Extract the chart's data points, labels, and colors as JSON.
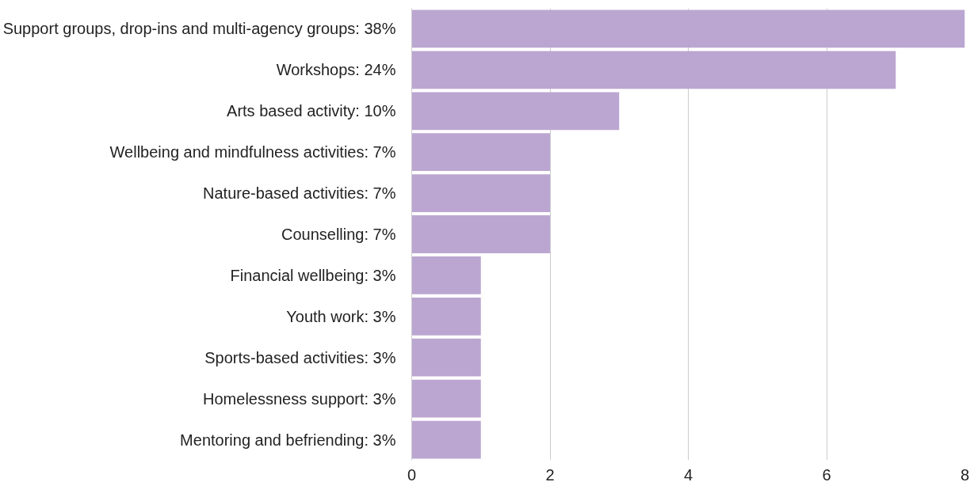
{
  "chart_data": {
    "type": "bar",
    "orientation": "horizontal",
    "categories": [
      "Support groups, drop-ins and multi-agency groups: 38%",
      "Workshops: 24%",
      "Arts based activity: 10%",
      "Wellbeing and mindfulness activities: 7%",
      "Nature-based activities: 7%",
      "Counselling: 7%",
      "Financial wellbeing: 3%",
      "Youth work: 3%",
      "Sports-based activities: 3%",
      "Homelessness support: 3%",
      "Mentoring and befriending: 3%"
    ],
    "values": [
      8,
      7,
      3,
      2,
      2,
      2,
      1,
      1,
      1,
      1,
      1
    ],
    "color": "#bba6d1",
    "xlim": [
      0,
      8
    ],
    "xticks": [
      0,
      2,
      4,
      6,
      8
    ],
    "grid": "x"
  }
}
